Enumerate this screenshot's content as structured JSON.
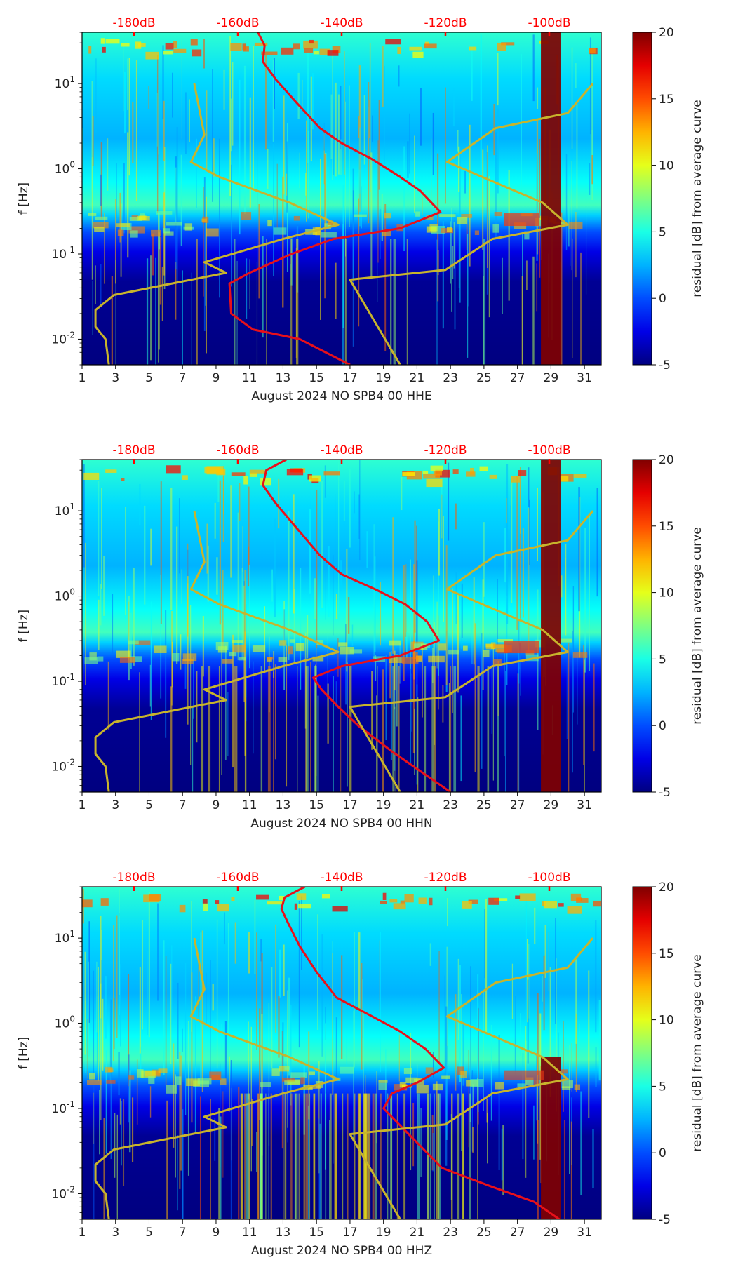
{
  "chart_data": [
    {
      "type": "heatmap",
      "channel": "HHE",
      "xlabel": "August 2024 NO SPB4 00 HHE",
      "ylabel": "f [Hz]",
      "x_ticks": [
        "1",
        "3",
        "5",
        "7",
        "9",
        "11",
        "13",
        "15",
        "17",
        "19",
        "21",
        "23",
        "25",
        "27",
        "29",
        "31"
      ],
      "x_range": [
        1,
        32
      ],
      "y_ticks": [
        "10-2",
        "10-1",
        "100",
        "101"
      ],
      "y_range": [
        0.005,
        40
      ],
      "top_ticks": [
        "-180dB",
        "-160dB",
        "-140dB",
        "-120dB",
        "-100dB"
      ],
      "colorbar": {
        "label": "residual [dB] from average curve",
        "ticks": [
          "-5",
          "0",
          "5",
          "10",
          "15",
          "20"
        ],
        "range": [
          -5,
          20
        ]
      },
      "series": [
        {
          "name": "average PSD curve",
          "color": "#e8101a",
          "points": [
            [
              11.5,
              40
            ],
            [
              11.9,
              28
            ],
            [
              11.8,
              18
            ],
            [
              12.6,
              11
            ],
            [
              13.8,
              6
            ],
            [
              15.2,
              3
            ],
            [
              16.5,
              2
            ],
            [
              18.3,
              1.3
            ],
            [
              20.0,
              0.8
            ],
            [
              21.2,
              0.55
            ],
            [
              22.4,
              0.31
            ],
            [
              20.0,
              0.2
            ],
            [
              16.0,
              0.15
            ],
            [
              13.5,
              0.1
            ],
            [
              11.0,
              0.06
            ],
            [
              9.8,
              0.045
            ],
            [
              9.9,
              0.02
            ],
            [
              11.2,
              0.013
            ],
            [
              14.0,
              0.01
            ],
            [
              17.0,
              0.005
            ]
          ]
        },
        {
          "name": "noise model curves",
          "color": "#c8b42c",
          "points": [
            [
              7.7,
              10
            ],
            [
              8.3,
              2.5
            ],
            [
              7.5,
              1.2
            ],
            [
              9.2,
              0.8
            ],
            [
              13.4,
              0.4
            ],
            [
              16.3,
              0.22
            ],
            [
              13.0,
              0.15
            ],
            [
              8.3,
              0.08
            ],
            [
              9.6,
              0.06
            ],
            [
              2.9,
              0.033
            ],
            [
              1.8,
              0.022
            ],
            [
              1.8,
              0.014
            ],
            [
              2.4,
              0.01
            ],
            [
              2.6,
              0.005
            ]
          ]
        },
        {
          "name": "noise model curves",
          "color": "#c8b42c",
          "points": [
            [
              31.5,
              10
            ],
            [
              30.0,
              4.5
            ],
            [
              25.7,
              3
            ],
            [
              22.8,
              1.2
            ],
            [
              28.5,
              0.4
            ],
            [
              30.0,
              0.22
            ],
            [
              25.5,
              0.15
            ],
            [
              22.7,
              0.065
            ],
            [
              17.0,
              0.05
            ],
            [
              20.0,
              0.005
            ]
          ]
        }
      ]
    },
    {
      "type": "heatmap",
      "channel": "HHN",
      "xlabel": "August 2024 NO SPB4 00 HHN",
      "ylabel": "f [Hz]",
      "x_ticks": [
        "1",
        "3",
        "5",
        "7",
        "9",
        "11",
        "13",
        "15",
        "17",
        "19",
        "21",
        "23",
        "25",
        "27",
        "29",
        "31"
      ],
      "x_range": [
        1,
        32
      ],
      "y_ticks": [
        "10-2",
        "10-1",
        "100",
        "101"
      ],
      "y_range": [
        0.005,
        40
      ],
      "top_ticks": [
        "-180dB",
        "-160dB",
        "-140dB",
        "-120dB",
        "-100dB"
      ],
      "colorbar": {
        "label": "residual [dB] from average curve",
        "ticks": [
          "-5",
          "0",
          "5",
          "10",
          "15",
          "20"
        ],
        "range": [
          -5,
          20
        ]
      },
      "series": [
        {
          "name": "average PSD curve",
          "color": "#e8101a",
          "points": [
            [
              13.2,
              40
            ],
            [
              12.0,
              30
            ],
            [
              11.8,
              20
            ],
            [
              12.6,
              12
            ],
            [
              13.9,
              6
            ],
            [
              15.2,
              3
            ],
            [
              16.5,
              1.8
            ],
            [
              18.5,
              1.2
            ],
            [
              20.3,
              0.8
            ],
            [
              21.6,
              0.5
            ],
            [
              22.3,
              0.3
            ],
            [
              20.0,
              0.2
            ],
            [
              16.5,
              0.15
            ],
            [
              14.8,
              0.11
            ],
            [
              15.3,
              0.08
            ],
            [
              16.3,
              0.05
            ],
            [
              17.5,
              0.03
            ],
            [
              19.5,
              0.015
            ],
            [
              23.0,
              0.005
            ]
          ]
        },
        {
          "name": "noise model curves",
          "color": "#c8b42c",
          "points": [
            [
              7.7,
              10
            ],
            [
              8.3,
              2.5
            ],
            [
              7.5,
              1.2
            ],
            [
              9.2,
              0.8
            ],
            [
              13.4,
              0.4
            ],
            [
              16.3,
              0.22
            ],
            [
              13.0,
              0.15
            ],
            [
              8.3,
              0.08
            ],
            [
              9.6,
              0.06
            ],
            [
              2.9,
              0.033
            ],
            [
              1.8,
              0.022
            ],
            [
              1.8,
              0.014
            ],
            [
              2.4,
              0.01
            ],
            [
              2.6,
              0.005
            ]
          ]
        },
        {
          "name": "noise model curves",
          "color": "#c8b42c",
          "points": [
            [
              31.5,
              10
            ],
            [
              30.0,
              4.5
            ],
            [
              25.7,
              3
            ],
            [
              22.8,
              1.2
            ],
            [
              28.5,
              0.4
            ],
            [
              30.0,
              0.22
            ],
            [
              25.5,
              0.15
            ],
            [
              22.7,
              0.065
            ],
            [
              17.0,
              0.05
            ],
            [
              20.0,
              0.005
            ]
          ]
        }
      ]
    },
    {
      "type": "heatmap",
      "channel": "HHZ",
      "xlabel": "August 2024 NO SPB4 00 HHZ",
      "ylabel": "f [Hz]",
      "x_ticks": [
        "1",
        "3",
        "5",
        "7",
        "9",
        "11",
        "13",
        "15",
        "17",
        "19",
        "21",
        "23",
        "25",
        "27",
        "29",
        "31"
      ],
      "x_range": [
        1,
        32
      ],
      "y_ticks": [
        "10-2",
        "10-1",
        "100",
        "101"
      ],
      "y_range": [
        0.005,
        40
      ],
      "top_ticks": [
        "-180dB",
        "-160dB",
        "-140dB",
        "-120dB",
        "-100dB"
      ],
      "colorbar": {
        "label": "residual [dB] from average curve",
        "ticks": [
          "-5",
          "0",
          "5",
          "10",
          "15",
          "20"
        ],
        "range": [
          -5,
          20
        ]
      },
      "series": [
        {
          "name": "average PSD curve",
          "color": "#e8101a",
          "points": [
            [
              14.3,
              40
            ],
            [
              13.1,
              30
            ],
            [
              12.9,
              22
            ],
            [
              13.3,
              15
            ],
            [
              14.0,
              8
            ],
            [
              15.0,
              4
            ],
            [
              16.2,
              2
            ],
            [
              18.0,
              1.3
            ],
            [
              20.0,
              0.8
            ],
            [
              21.5,
              0.5
            ],
            [
              22.6,
              0.3
            ],
            [
              21.0,
              0.2
            ],
            [
              19.5,
              0.15
            ],
            [
              19.0,
              0.1
            ],
            [
              20.5,
              0.05
            ],
            [
              22.5,
              0.02
            ],
            [
              25.5,
              0.012
            ],
            [
              28.0,
              0.008
            ],
            [
              29.5,
              0.005
            ]
          ]
        },
        {
          "name": "noise model curves",
          "color": "#c8b42c",
          "points": [
            [
              7.7,
              10
            ],
            [
              8.3,
              2.5
            ],
            [
              7.5,
              1.2
            ],
            [
              9.2,
              0.8
            ],
            [
              13.4,
              0.4
            ],
            [
              16.3,
              0.22
            ],
            [
              13.0,
              0.15
            ],
            [
              8.3,
              0.08
            ],
            [
              9.6,
              0.06
            ],
            [
              2.9,
              0.033
            ],
            [
              1.8,
              0.022
            ],
            [
              1.8,
              0.014
            ],
            [
              2.4,
              0.01
            ],
            [
              2.6,
              0.005
            ]
          ]
        },
        {
          "name": "noise model curves",
          "color": "#c8b42c",
          "points": [
            [
              31.5,
              10
            ],
            [
              30.0,
              4.5
            ],
            [
              25.7,
              3
            ],
            [
              22.8,
              1.2
            ],
            [
              28.5,
              0.4
            ],
            [
              30.0,
              0.22
            ],
            [
              25.5,
              0.15
            ],
            [
              22.7,
              0.065
            ],
            [
              17.0,
              0.05
            ],
            [
              20.0,
              0.005
            ]
          ]
        }
      ]
    }
  ]
}
